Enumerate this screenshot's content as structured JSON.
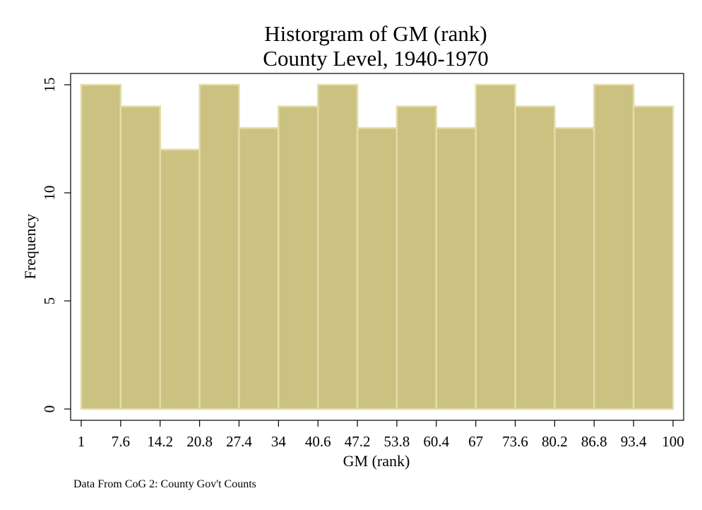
{
  "chart_data": {
    "type": "bar",
    "title_lines": [
      "Historgram of GM  (rank)",
      "County Level, 1940-1970"
    ],
    "xlabel": "GM  (rank)",
    "ylabel": "Frequency",
    "note": "Data From CoG 2: County Gov't Counts",
    "x_ticks": [
      "1",
      "7.6",
      "14.2",
      "20.8",
      "27.4",
      "34",
      "40.6",
      "47.2",
      "53.8",
      "60.4",
      "67",
      "73.6",
      "80.2",
      "86.8",
      "93.4",
      "100"
    ],
    "bins": [
      {
        "start": 1,
        "end": 7.6
      },
      {
        "start": 7.6,
        "end": 14.2
      },
      {
        "start": 14.2,
        "end": 20.8
      },
      {
        "start": 20.8,
        "end": 27.4
      },
      {
        "start": 27.4,
        "end": 34
      },
      {
        "start": 34,
        "end": 40.6
      },
      {
        "start": 40.6,
        "end": 47.2
      },
      {
        "start": 47.2,
        "end": 53.8
      },
      {
        "start": 53.8,
        "end": 60.4
      },
      {
        "start": 60.4,
        "end": 67
      },
      {
        "start": 67,
        "end": 73.6
      },
      {
        "start": 73.6,
        "end": 80.2
      },
      {
        "start": 80.2,
        "end": 86.8
      },
      {
        "start": 86.8,
        "end": 93.4
      },
      {
        "start": 93.4,
        "end": 100
      }
    ],
    "values": [
      15,
      14,
      12,
      15,
      13,
      14,
      15,
      13,
      14,
      13,
      15,
      14,
      13,
      15,
      14
    ],
    "y_ticks": [
      0,
      5,
      10,
      15
    ],
    "xlim": [
      1,
      100
    ],
    "ylim": [
      0,
      15
    ],
    "grid": false,
    "colors": {
      "bar_fill": "#cbc282",
      "bar_edge": "#e4dca8",
      "axis": "#000000",
      "background": "#ffffff"
    }
  }
}
